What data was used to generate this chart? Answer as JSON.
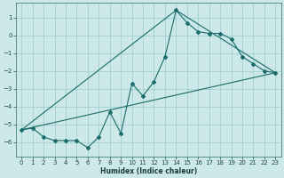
{
  "bg_color": "#cce8e8",
  "grid_color": "#99cccc",
  "line_color": "#1a6b6b",
  "xlabel": "Humidex (Indice chaleur)",
  "xlim": [
    -0.5,
    23.5
  ],
  "ylim": [
    -6.8,
    1.8
  ],
  "yticks": [
    1,
    0,
    -1,
    -2,
    -3,
    -4,
    -5,
    -6
  ],
  "xticks": [
    0,
    1,
    2,
    3,
    4,
    5,
    6,
    7,
    8,
    9,
    10,
    11,
    12,
    13,
    14,
    15,
    16,
    17,
    18,
    19,
    20,
    21,
    22,
    23
  ],
  "line1_x": [
    0,
    1,
    2,
    3,
    4,
    5,
    6,
    7,
    8,
    9,
    10,
    11,
    12,
    13,
    14,
    15,
    16,
    17,
    18,
    19,
    20,
    21,
    22,
    23
  ],
  "line1_y": [
    -5.3,
    -5.2,
    -5.7,
    -5.9,
    -5.9,
    -5.9,
    -6.3,
    -5.7,
    -4.3,
    -5.5,
    -2.7,
    -3.4,
    -2.6,
    -1.2,
    1.4,
    0.7,
    0.2,
    0.1,
    0.1,
    -0.2,
    -1.2,
    -1.6,
    -2.0,
    -2.1
  ],
  "line2_x": [
    0,
    23
  ],
  "line2_y": [
    -5.3,
    -2.1
  ],
  "line3_x": [
    0,
    14,
    23
  ],
  "line3_y": [
    -5.3,
    1.4,
    -2.1
  ],
  "xlabel_fontsize": 5.5,
  "tick_fontsize": 5.0,
  "linewidth": 0.8,
  "markersize": 2.0
}
